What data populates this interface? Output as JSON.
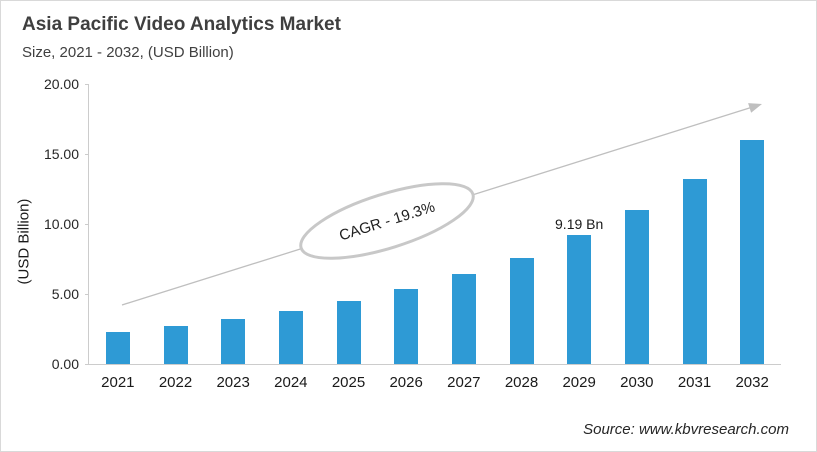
{
  "header": {
    "title": "Asia Pacific Video Analytics Market",
    "subtitle": "Size, 2021 - 2032, (USD Billion)"
  },
  "chart_data": {
    "type": "bar",
    "title": "Asia Pacific Video Analytics Market",
    "subtitle": "Size, 2021 - 2032, (USD Billion)",
    "categories": [
      "2021",
      "2022",
      "2023",
      "2024",
      "2025",
      "2026",
      "2027",
      "2028",
      "2029",
      "2030",
      "2031",
      "2032"
    ],
    "values": [
      2.3,
      2.75,
      3.2,
      3.8,
      4.5,
      5.35,
      6.45,
      7.6,
      9.19,
      11.0,
      13.2,
      16.0
    ],
    "xlabel": "",
    "ylabel": "(USD Billion)",
    "ylim": [
      0,
      20
    ],
    "yticks": [
      "0.00",
      "5.00",
      "10.00",
      "15.00",
      "20.00"
    ],
    "grid": false,
    "legend": "none",
    "annotations": {
      "cagr_label": "CAGR - 19.3%",
      "data_label": {
        "category": "2029",
        "text": "9.19 Bn"
      },
      "trend_arrow": "up-right"
    }
  },
  "footer": {
    "source": "Source: www.kbvresearch.com"
  },
  "colors": {
    "bar": "#2e9ad5",
    "axis_line": "#cccccc",
    "arrow": "#bfbfbf",
    "ellipse_stroke": "#c8c8c8",
    "title_text": "#3f3f3f",
    "tick_text": "#262626"
  }
}
